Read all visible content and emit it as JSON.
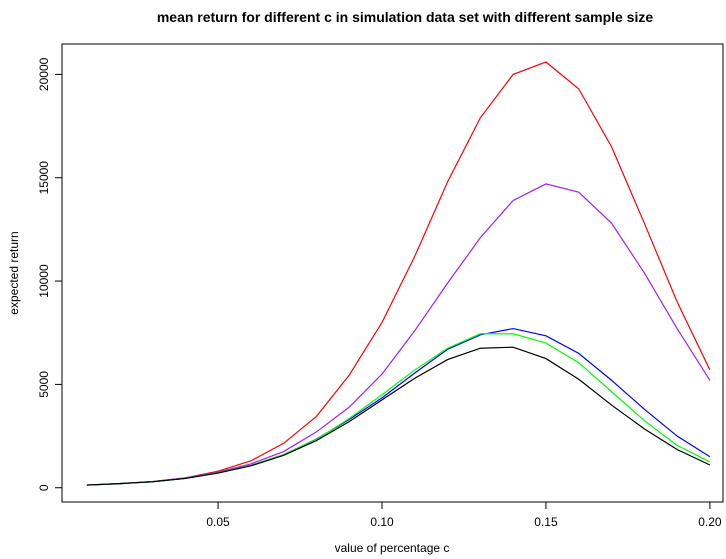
{
  "chart_data": {
    "type": "line",
    "title": "mean return for different c in simulation data set with different sample size",
    "x_label": "value of percentage c",
    "y_label": "expected return",
    "x": [
      0.01,
      0.02,
      0.03,
      0.04,
      0.05,
      0.06,
      0.07,
      0.08,
      0.09,
      0.1,
      0.11,
      0.12,
      0.13,
      0.14,
      0.15,
      0.16,
      0.17,
      0.18,
      0.19,
      0.2
    ],
    "series": [
      {
        "color": "#ff0000",
        "values": [
          130,
          200,
          300,
          480,
          800,
          1300,
          2150,
          3450,
          5450,
          8000,
          11200,
          14800,
          17900,
          20000,
          20600,
          19300,
          16500,
          12800,
          9000,
          5700
        ]
      },
      {
        "color": "#a020f0",
        "values": [
          130,
          200,
          300,
          470,
          760,
          1150,
          1750,
          2700,
          3900,
          5500,
          7600,
          9900,
          12100,
          13900,
          14700,
          14300,
          12800,
          10400,
          7700,
          5200
        ]
      },
      {
        "color": "#0000ff",
        "values": [
          130,
          200,
          290,
          450,
          720,
          1080,
          1600,
          2350,
          3300,
          4350,
          5550,
          6700,
          7400,
          7700,
          7350,
          6500,
          5200,
          3800,
          2500,
          1500
        ]
      },
      {
        "color": "#00ff00",
        "values": [
          130,
          200,
          290,
          450,
          720,
          1080,
          1600,
          2330,
          3350,
          4500,
          5700,
          6750,
          7450,
          7450,
          7000,
          6050,
          4650,
          3250,
          2050,
          1250
        ]
      },
      {
        "color": "#000000",
        "values": [
          130,
          200,
          290,
          450,
          710,
          1060,
          1570,
          2280,
          3200,
          4250,
          5300,
          6200,
          6750,
          6800,
          6250,
          5250,
          4000,
          2850,
          1850,
          1100
        ]
      }
    ],
    "xlim": [
      0.0024,
      0.204
    ],
    "ylim": [
      -690,
      21470
    ],
    "xticks": [
      0.05,
      {
        "value": 0.1,
        "label": "0.10"
      },
      0.15,
      {
        "value": 0.2,
        "label": "0.20"
      }
    ],
    "yticks": [
      0,
      5000,
      10000,
      15000,
      20000
    ]
  }
}
